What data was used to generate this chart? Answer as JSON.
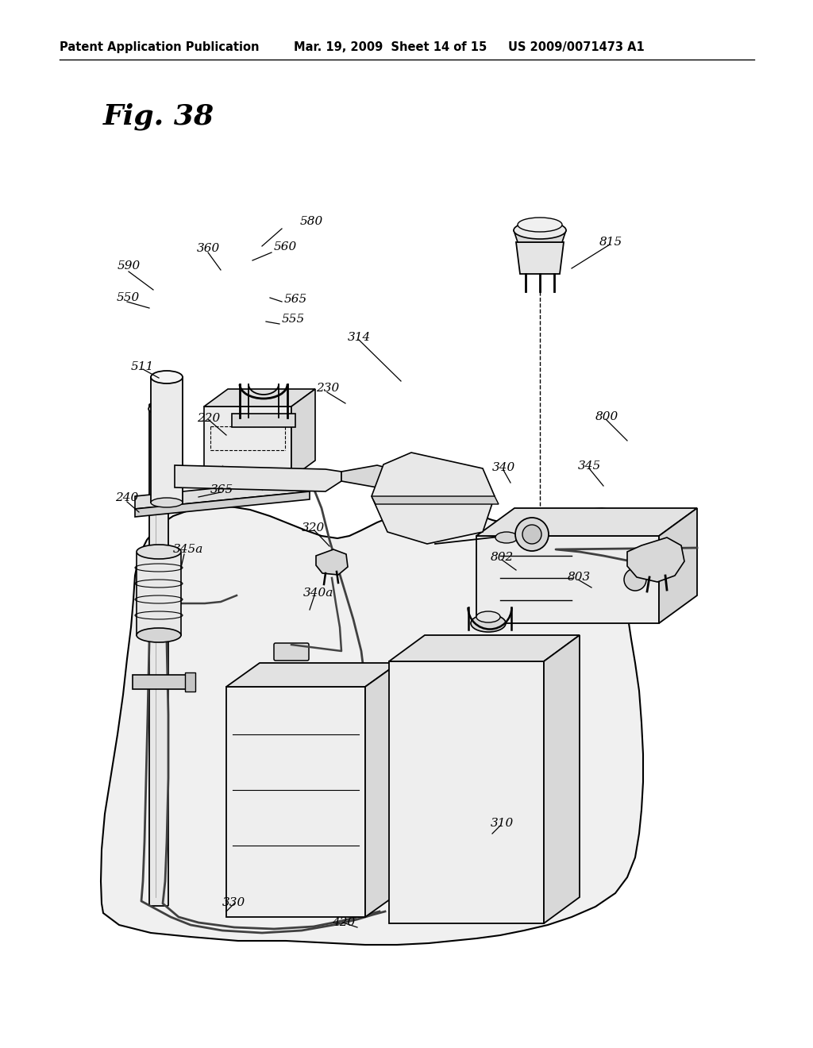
{
  "bg_color": "#ffffff",
  "header_text": "Patent Application Publication",
  "header_date": "Mar. 19, 2009  Sheet 14 of 15",
  "header_patent": "US 2009/0071473 A1",
  "fig_label": "Fig. 38"
}
